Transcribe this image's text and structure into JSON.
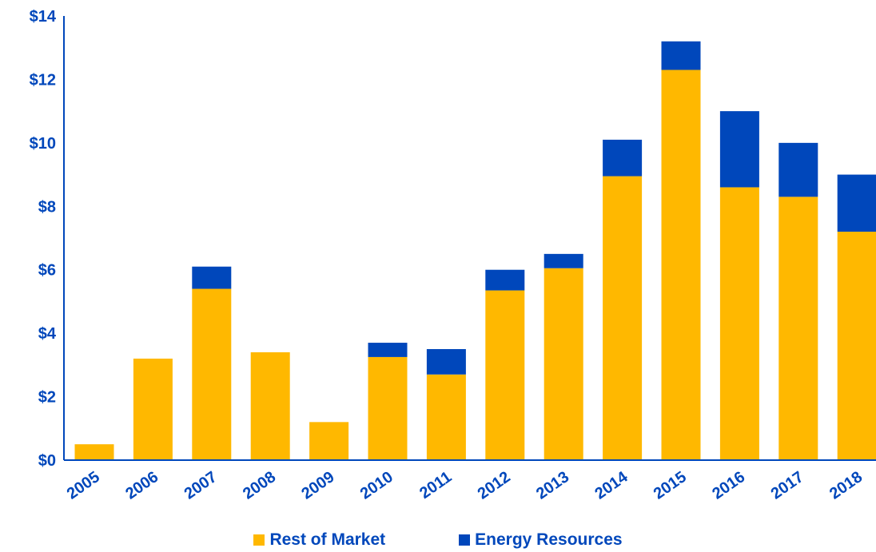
{
  "chart_data": {
    "type": "bar",
    "stacked": true,
    "categories": [
      "2005",
      "2006",
      "2007",
      "2008",
      "2009",
      "2010",
      "2011",
      "2012",
      "2013",
      "2014",
      "2015",
      "2016",
      "2017",
      "2018"
    ],
    "series": [
      {
        "name": "Rest of Market",
        "color": "#FFB800",
        "values": [
          0.5,
          3.2,
          5.4,
          3.4,
          1.2,
          3.25,
          2.7,
          5.35,
          6.05,
          8.95,
          12.3,
          8.6,
          8.3,
          7.2
        ]
      },
      {
        "name": "Energy Resources",
        "color": "#0047BB",
        "values": [
          0.0,
          0.0,
          0.7,
          0.0,
          0.0,
          0.45,
          0.8,
          0.65,
          0.45,
          1.15,
          0.9,
          2.4,
          1.7,
          1.8
        ]
      }
    ],
    "y_ticks": [
      "$0",
      "$2",
      "$4",
      "$6",
      "$8",
      "$10",
      "$12",
      "$14"
    ],
    "ylim": [
      0,
      14
    ],
    "label_color": "#0047BB",
    "grid": false,
    "legend_position": "bottom"
  }
}
